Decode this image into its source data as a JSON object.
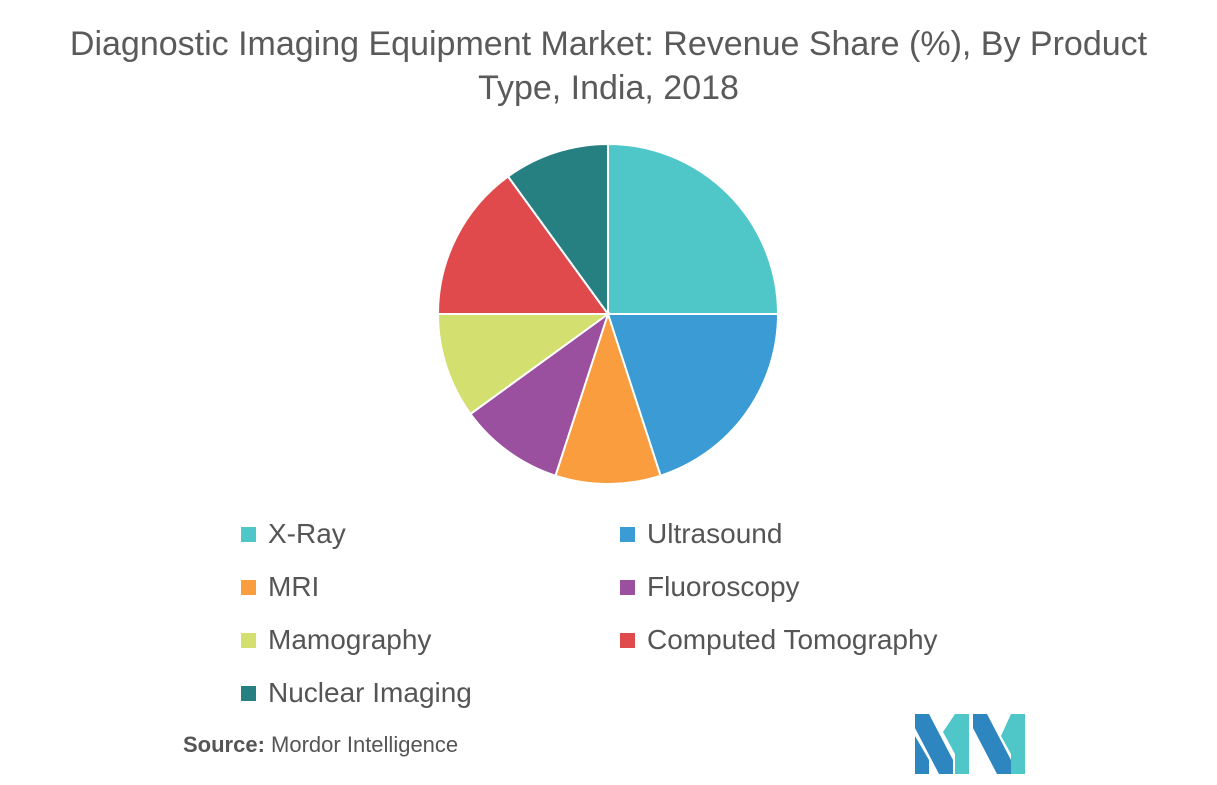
{
  "chart_data": {
    "type": "pie",
    "title": "Diagnostic Imaging Equipment Market: Revenue Share (%), By Product Type, India, 2018",
    "categories": [
      "X-Ray",
      "Ultrasound",
      "MRI",
      "Fluoroscopy",
      "Mamography",
      "Computed Tomography",
      "Nuclear Imaging"
    ],
    "values": [
      25,
      20,
      10,
      10,
      10,
      15,
      10
    ],
    "colors": [
      "#4FC6C8",
      "#3A9BD5",
      "#F99D3E",
      "#9B4F9F",
      "#D3DF6E",
      "#E04A4C",
      "#267F81"
    ],
    "legend_position": "bottom"
  },
  "source": {
    "label": "Source:",
    "text": "Mordor Intelligence"
  },
  "logo": {
    "icon": "mordor-intelligence-logo",
    "colors": [
      "#2E86C1",
      "#4FC6C8"
    ]
  }
}
